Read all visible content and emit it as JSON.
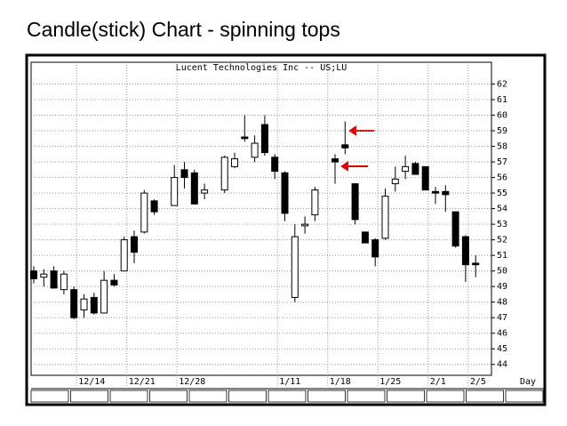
{
  "slide_title": "Candle(stick) Chart -  spinning tops",
  "chart_data": {
    "type": "candlestick",
    "title": "Lucent Technologies Inc -- US;LU",
    "x_label": "Day",
    "categories": [
      null,
      null,
      null,
      null,
      "12/14",
      null,
      null,
      null,
      null,
      "12/21",
      null,
      null,
      null,
      null,
      "12/28",
      null,
      null,
      null,
      null,
      null,
      null,
      null,
      null,
      null,
      "1/11",
      null,
      null,
      null,
      null,
      "1/18",
      null,
      null,
      null,
      null,
      "1/25",
      null,
      null,
      null,
      null,
      "2/1",
      null,
      null,
      null,
      "2/5",
      null
    ],
    "open": [
      50,
      49.6,
      50,
      48.8,
      48.8,
      47.5,
      48.3,
      47.3,
      49.4,
      50,
      52.2,
      52.5,
      54.5,
      null,
      54.2,
      56.5,
      56.3,
      55,
      null,
      55.2,
      56.7,
      58.6,
      57.3,
      59.4,
      57.3,
      56.3,
      48.3,
      52.9,
      53.6,
      null,
      57.2,
      58.1,
      55.6,
      52.5,
      52,
      52.1,
      55.6,
      56.4,
      56.9,
      56.7,
      55.1,
      55.1,
      53.8,
      52.2,
      50.5
    ],
    "high": [
      50.3,
      50.1,
      50.3,
      50,
      49,
      48.5,
      48.6,
      50,
      49.8,
      52.2,
      52.6,
      55.2,
      54.6,
      null,
      56.8,
      57,
      56.5,
      55.6,
      null,
      57.4,
      57.6,
      60,
      58.7,
      60,
      57.5,
      56.4,
      53,
      53.5,
      55.4,
      null,
      57.5,
      59.6,
      55.6,
      52.5,
      52.1,
      55.3,
      56.7,
      57.4,
      57,
      56.7,
      55.4,
      55.5,
      53.8,
      52.3,
      51
    ],
    "low": [
      49.2,
      49,
      48.9,
      48.5,
      46.9,
      47,
      47.2,
      47.3,
      49,
      50,
      50.5,
      52.4,
      53.6,
      null,
      54.2,
      55.3,
      54.3,
      54.6,
      null,
      55,
      56.6,
      58.3,
      57,
      57.4,
      55.9,
      53.2,
      48,
      52.4,
      53.2,
      null,
      55.6,
      57.5,
      53,
      51.8,
      50.3,
      52,
      55.1,
      55.9,
      56.2,
      55.2,
      54.3,
      53.8,
      51.5,
      49.3,
      49.6
    ],
    "close": [
      49.5,
      49.8,
      48.9,
      49.8,
      47,
      48.2,
      47.3,
      49.4,
      49.1,
      52,
      51.2,
      55,
      53.8,
      null,
      56,
      56,
      54.3,
      55.2,
      null,
      57.3,
      57.2,
      58.5,
      58.2,
      57.6,
      56.4,
      53.7,
      52.2,
      53,
      55.2,
      null,
      57,
      57.9,
      53.3,
      51.8,
      50.9,
      54.8,
      55.9,
      56.7,
      56.2,
      55.2,
      55,
      54.9,
      51.6,
      50.4,
      50.4
    ],
    "up_color": "#ffffff",
    "down_color": "#000000",
    "ylim": [
      43.3,
      63.4
    ],
    "yticks": [
      44,
      45,
      46,
      47,
      48,
      49,
      50,
      51,
      52,
      53,
      54,
      55,
      56,
      57,
      58,
      59,
      60,
      61,
      62
    ],
    "grid": true
  }
}
